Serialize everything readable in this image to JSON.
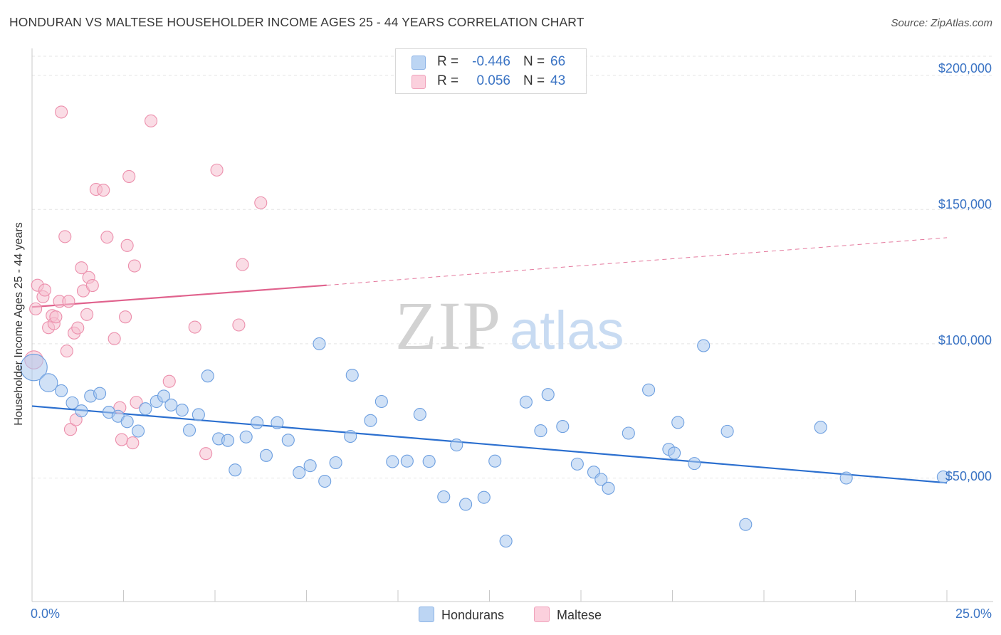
{
  "title": "HONDURAN VS MALTESE HOUSEHOLDER INCOME AGES 25 - 44 YEARS CORRELATION CHART",
  "source": "Source: ZipAtlas.com",
  "watermark": {
    "zip": "ZIP",
    "atlas": "atlas"
  },
  "colors": {
    "hondurans_fill": "#a9c8ef",
    "hondurans_stroke": "#6d9fe0",
    "hondurans_line": "#2b6fcf",
    "maltese_fill": "#f6bfd0",
    "maltese_stroke": "#ec8fac",
    "maltese_line": "#e0628d",
    "axis_label": "#3b74c4",
    "grid": "#e4e4e4"
  },
  "legend": {
    "rows": [
      {
        "r_label": "R =",
        "r_value": "-0.446",
        "n_label": "N =",
        "n_value": "66"
      },
      {
        "r_label": "R =",
        "r_value": "0.056",
        "n_label": "N =",
        "n_value": "43"
      }
    ]
  },
  "bottom_legend": {
    "hondurans": "Hondurans",
    "maltese": "Maltese"
  },
  "chart_data": {
    "type": "scatter",
    "title": "HONDURAN VS MALTESE HOUSEHOLDER INCOME AGES 25 - 44 YEARS CORRELATION CHART",
    "xlabel": "",
    "ylabel": "Householder Income Ages 25 - 44 years",
    "xlim": [
      0,
      25
    ],
    "ylim": [
      4000,
      210000
    ],
    "x_tick_labels": [
      "0.0%",
      "25.0%"
    ],
    "y_ticks": [
      50000,
      100000,
      150000,
      200000
    ],
    "y_tick_labels": [
      "$50,000",
      "$100,000",
      "$150,000",
      "$200,000"
    ],
    "grid": true,
    "legend_position": "top-center",
    "series": [
      {
        "name": "Hondurans",
        "r": -0.446,
        "n": 66,
        "trend": {
          "x": [
            0,
            25
          ],
          "y": [
            76800,
            48200
          ]
        },
        "points": [
          [
            0.05,
            91200,
            2.2
          ],
          [
            0.45,
            85500,
            1.5
          ],
          [
            0.8,
            82500,
            1
          ],
          [
            1.1,
            78000,
            1
          ],
          [
            1.35,
            75000,
            1
          ],
          [
            1.6,
            80500,
            1
          ],
          [
            1.85,
            81500,
            1
          ],
          [
            2.1,
            74500,
            1
          ],
          [
            2.35,
            73000,
            1
          ],
          [
            2.6,
            71000,
            1
          ],
          [
            2.9,
            67500,
            1
          ],
          [
            3.1,
            75800,
            1
          ],
          [
            3.4,
            78500,
            1
          ],
          [
            3.6,
            80500,
            1
          ],
          [
            3.8,
            77200,
            1
          ],
          [
            4.1,
            75300,
            1
          ],
          [
            4.3,
            67800,
            1
          ],
          [
            4.55,
            73600,
            1
          ],
          [
            4.8,
            88000,
            1
          ],
          [
            5.1,
            64600,
            1
          ],
          [
            5.35,
            64000,
            1
          ],
          [
            5.55,
            53000,
            1
          ],
          [
            5.85,
            65300,
            1
          ],
          [
            6.15,
            70600,
            1
          ],
          [
            6.4,
            58400,
            1
          ],
          [
            6.7,
            70600,
            1
          ],
          [
            7.0,
            64100,
            1
          ],
          [
            7.3,
            52000,
            1
          ],
          [
            7.6,
            54600,
            1
          ],
          [
            7.85,
            100000,
            1
          ],
          [
            8.0,
            48800,
            1
          ],
          [
            8.3,
            55700,
            1
          ],
          [
            8.7,
            65500,
            1
          ],
          [
            8.75,
            88300,
            1
          ],
          [
            9.25,
            71400,
            1
          ],
          [
            9.55,
            78500,
            1
          ],
          [
            9.85,
            56100,
            1
          ],
          [
            10.25,
            56300,
            1
          ],
          [
            10.6,
            73700,
            1
          ],
          [
            10.85,
            56200,
            1
          ],
          [
            11.25,
            43000,
            1
          ],
          [
            11.6,
            62300,
            1
          ],
          [
            11.85,
            40200,
            1
          ],
          [
            12.35,
            42800,
            1
          ],
          [
            12.65,
            56300,
            1
          ],
          [
            12.95,
            26500,
            1
          ],
          [
            13.5,
            78300,
            1
          ],
          [
            13.9,
            67600,
            1
          ],
          [
            14.1,
            81100,
            1
          ],
          [
            14.5,
            69200,
            1
          ],
          [
            14.9,
            55200,
            1
          ],
          [
            15.35,
            52200,
            1
          ],
          [
            15.55,
            49500,
            1
          ],
          [
            15.75,
            46200,
            1
          ],
          [
            16.3,
            66700,
            1
          ],
          [
            16.85,
            82800,
            1
          ],
          [
            17.4,
            60700,
            1
          ],
          [
            17.55,
            59300,
            1
          ],
          [
            17.65,
            70700,
            1
          ],
          [
            18.1,
            55400,
            1
          ],
          [
            18.35,
            99300,
            1
          ],
          [
            19.0,
            67400,
            1
          ],
          [
            19.5,
            32700,
            1
          ],
          [
            21.55,
            68900,
            1
          ],
          [
            22.25,
            50000,
            1
          ],
          [
            24.9,
            50400,
            1
          ]
        ]
      },
      {
        "name": "Maltese",
        "r": 0.056,
        "n": 43,
        "trend": {
          "x": [
            0,
            8.05
          ],
          "y": [
            113700,
            121800
          ]
        },
        "trend_extension": {
          "x": [
            8.05,
            25
          ],
          "y": [
            121800,
            139500
          ]
        },
        "points": [
          [
            0.05,
            94000,
            1.5
          ],
          [
            0.1,
            113000,
            1
          ],
          [
            0.15,
            121800,
            1
          ],
          [
            0.3,
            117500,
            1
          ],
          [
            0.35,
            120000,
            1
          ],
          [
            0.45,
            106000,
            1
          ],
          [
            0.55,
            110500,
            1
          ],
          [
            0.6,
            107500,
            1
          ],
          [
            0.65,
            110000,
            1
          ],
          [
            0.75,
            115800,
            1
          ],
          [
            0.8,
            186300,
            1
          ],
          [
            0.9,
            139900,
            1
          ],
          [
            0.95,
            97300,
            1
          ],
          [
            1.0,
            115800,
            1
          ],
          [
            1.05,
            68100,
            1
          ],
          [
            1.15,
            104000,
            1
          ],
          [
            1.2,
            71700,
            1
          ],
          [
            1.25,
            105900,
            1
          ],
          [
            1.35,
            128300,
            1
          ],
          [
            1.4,
            119700,
            1
          ],
          [
            1.5,
            110900,
            1
          ],
          [
            1.55,
            124700,
            1
          ],
          [
            1.65,
            121700,
            1
          ],
          [
            1.75,
            157500,
            1
          ],
          [
            1.95,
            157200,
            1
          ],
          [
            2.05,
            139700,
            1
          ],
          [
            2.25,
            101900,
            1
          ],
          [
            2.4,
            76200,
            1
          ],
          [
            2.45,
            64300,
            1
          ],
          [
            2.55,
            110000,
            1
          ],
          [
            2.6,
            136600,
            1
          ],
          [
            2.65,
            162300,
            1
          ],
          [
            2.75,
            63100,
            1
          ],
          [
            2.8,
            129000,
            1
          ],
          [
            2.85,
            78200,
            1
          ],
          [
            3.25,
            183000,
            1
          ],
          [
            3.75,
            86000,
            1
          ],
          [
            4.45,
            106200,
            1
          ],
          [
            4.75,
            59100,
            1
          ],
          [
            5.05,
            164700,
            1
          ],
          [
            5.65,
            107000,
            1
          ],
          [
            5.75,
            129500,
            1
          ],
          [
            6.25,
            152500,
            1
          ]
        ]
      }
    ]
  }
}
